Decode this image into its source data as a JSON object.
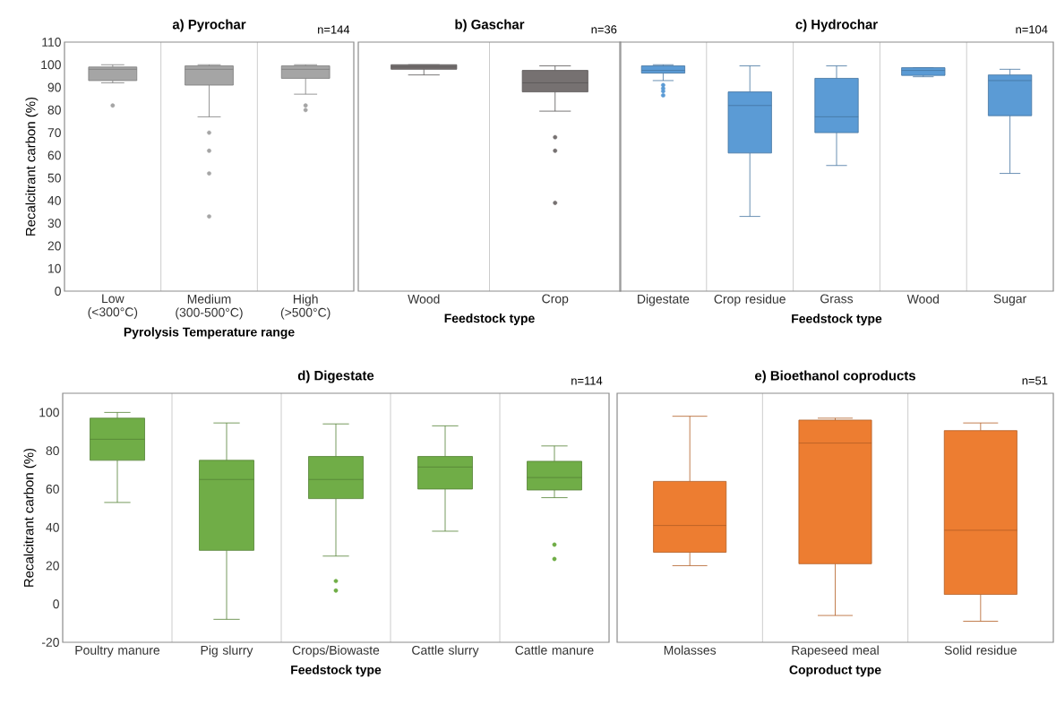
{
  "chart_data": [
    {
      "type": "box",
      "title": "a) Pyrochar",
      "annotations": [
        "n=144"
      ],
      "ylabel": "Recalcitrant carbon (%)",
      "xlabel": "Pyrolysis Temperature range",
      "categories": [
        "Low (<300°C)",
        "Medium (300-500°C)",
        "High (>500°C)"
      ],
      "color": "#a5a5a5",
      "grid": "x",
      "ylim": [
        0,
        110
      ],
      "yticks": [
        0,
        10,
        20,
        30,
        40,
        50,
        60,
        70,
        80,
        90,
        100,
        110
      ],
      "boxes": [
        {
          "low": 92,
          "q1": 93,
          "median": 98,
          "q3": 99,
          "high": 100,
          "outliers": [
            82
          ]
        },
        {
          "low": 77,
          "q1": 91,
          "median": 98,
          "q3": 99.5,
          "high": 100,
          "outliers": [
            70,
            62,
            52,
            33
          ]
        },
        {
          "low": 87,
          "q1": 94,
          "median": 98,
          "q3": 99.5,
          "high": 100,
          "outliers": [
            82,
            80
          ]
        }
      ]
    },
    {
      "type": "box",
      "title": "b) Gaschar",
      "annotations": [
        "n=36"
      ],
      "xlabel": "Feedstock type",
      "categories": [
        "Wood",
        "Crop"
      ],
      "color": "#767171",
      "grid": "x",
      "ylim": [
        0,
        110
      ],
      "tick_labels": "x",
      "boxes": [
        {
          "low": 95.5,
          "q1": 98,
          "median": 99,
          "q3": 100,
          "high": 100
        },
        {
          "low": 79.5,
          "q1": 88,
          "median": 92,
          "q3": 97.5,
          "high": 99.5,
          "outliers": [
            68,
            62,
            39
          ]
        }
      ]
    },
    {
      "type": "box",
      "title": "c) Hydrochar",
      "annotations": [
        "n=104"
      ],
      "xlabel": "Feedstock type",
      "categories": [
        "Digestate",
        "Crop residue",
        "Grass",
        "Wood",
        "Sugar"
      ],
      "color": "#5b9bd5",
      "grid": "x",
      "ylim": [
        0,
        110
      ],
      "tick_labels": "x",
      "boxes": [
        {
          "low": 93,
          "q1": 96.3,
          "median": 97.5,
          "q3": 99.5,
          "high": 100,
          "outliers": [
            91,
            89.5,
            88.3,
            86.5
          ]
        },
        {
          "low": 33,
          "q1": 61,
          "median": 82,
          "q3": 88,
          "high": 99.5
        },
        {
          "low": 55.5,
          "q1": 70,
          "median": 77,
          "q3": 94,
          "high": 99.5
        },
        {
          "low": 94.7,
          "q1": 95.3,
          "median": 97.5,
          "q3": 98.7,
          "high": 98.7
        },
        {
          "low": 52,
          "q1": 77.5,
          "median": 93,
          "q3": 95.5,
          "high": 98
        }
      ]
    },
    {
      "type": "box",
      "title": "d) Digestate",
      "annotations": [
        "n=114"
      ],
      "ylabel": "Recalcitrant carbon (%)",
      "xlabel": "Feedstock type",
      "categories": [
        "Poultry manure",
        "Pig slurry",
        "Crops/Biowaste",
        "Cattle slurry",
        "Cattle manure"
      ],
      "color": "#70ad47",
      "grid": "x",
      "ylim": [
        -20,
        110
      ],
      "yticks": [
        -20,
        0,
        20,
        40,
        60,
        80,
        100
      ],
      "boxes": [
        {
          "low": 53,
          "q1": 75,
          "median": 86,
          "q3": 97,
          "high": 100
        },
        {
          "low": -8,
          "q1": 28,
          "median": 65,
          "q3": 75,
          "high": 94.5
        },
        {
          "low": 25,
          "q1": 55,
          "median": 65,
          "q3": 77,
          "high": 94,
          "outliers": [
            12,
            7
          ]
        },
        {
          "low": 38,
          "q1": 60,
          "median": 71.5,
          "q3": 77,
          "high": 93
        },
        {
          "low": 55.5,
          "q1": 59.5,
          "median": 66,
          "q3": 74.5,
          "high": 82.5,
          "outliers": [
            31,
            23.5
          ]
        }
      ]
    },
    {
      "type": "box",
      "title": "e) Bioethanol coproducts",
      "annotations": [
        "n=51"
      ],
      "xlabel": "Coproduct type",
      "categories": [
        "Molasses",
        "Rapeseed meal",
        "Solid residue"
      ],
      "color": "#ed7d31",
      "grid": "x",
      "ylim": [
        -20,
        110
      ],
      "tick_labels": "x",
      "boxes": [
        {
          "low": 20,
          "q1": 27,
          "median": 41,
          "q3": 64,
          "high": 98
        },
        {
          "low": -6,
          "q1": 21,
          "median": 84,
          "q3": 96,
          "high": 97
        },
        {
          "low": -9,
          "q1": 5,
          "median": 38.5,
          "q3": 90.5,
          "high": 94.5
        }
      ]
    }
  ]
}
